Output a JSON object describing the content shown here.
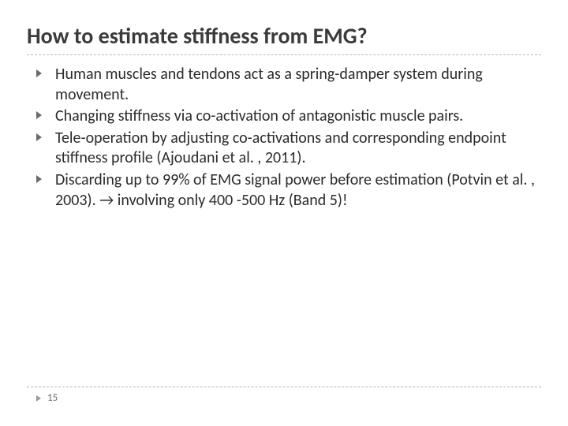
{
  "title": "How to estimate stiffness from EMG?",
  "bullets": [
    "Human muscles and tendons act as a spring-damper system during movement.",
    "Changing stiffness via co-activation of antagonistic muscle pairs.",
    "Tele-operation by adjusting co-activations and corresponding endpoint stiffness profile (Ajoudani et al. , 2011).",
    "Discarding up to 99% of EMG signal power before estimation (Potvin et al. , 2003). → involving only 400 -500 Hz (Band 5)!"
  ],
  "page_number": "15",
  "colors": {
    "title": "#3b3b3b",
    "body_text": "#2b2b2b",
    "bullet_marker": "#6b6b6b",
    "divider": "#b8b8b8",
    "page_marker": "#9a9a9a",
    "page_num": "#6a6a6a",
    "background": "#ffffff"
  },
  "typography": {
    "title_fontsize": 28,
    "title_weight": 700,
    "body_fontsize": 20,
    "page_fontsize": 13,
    "font_family": "Calibri"
  }
}
